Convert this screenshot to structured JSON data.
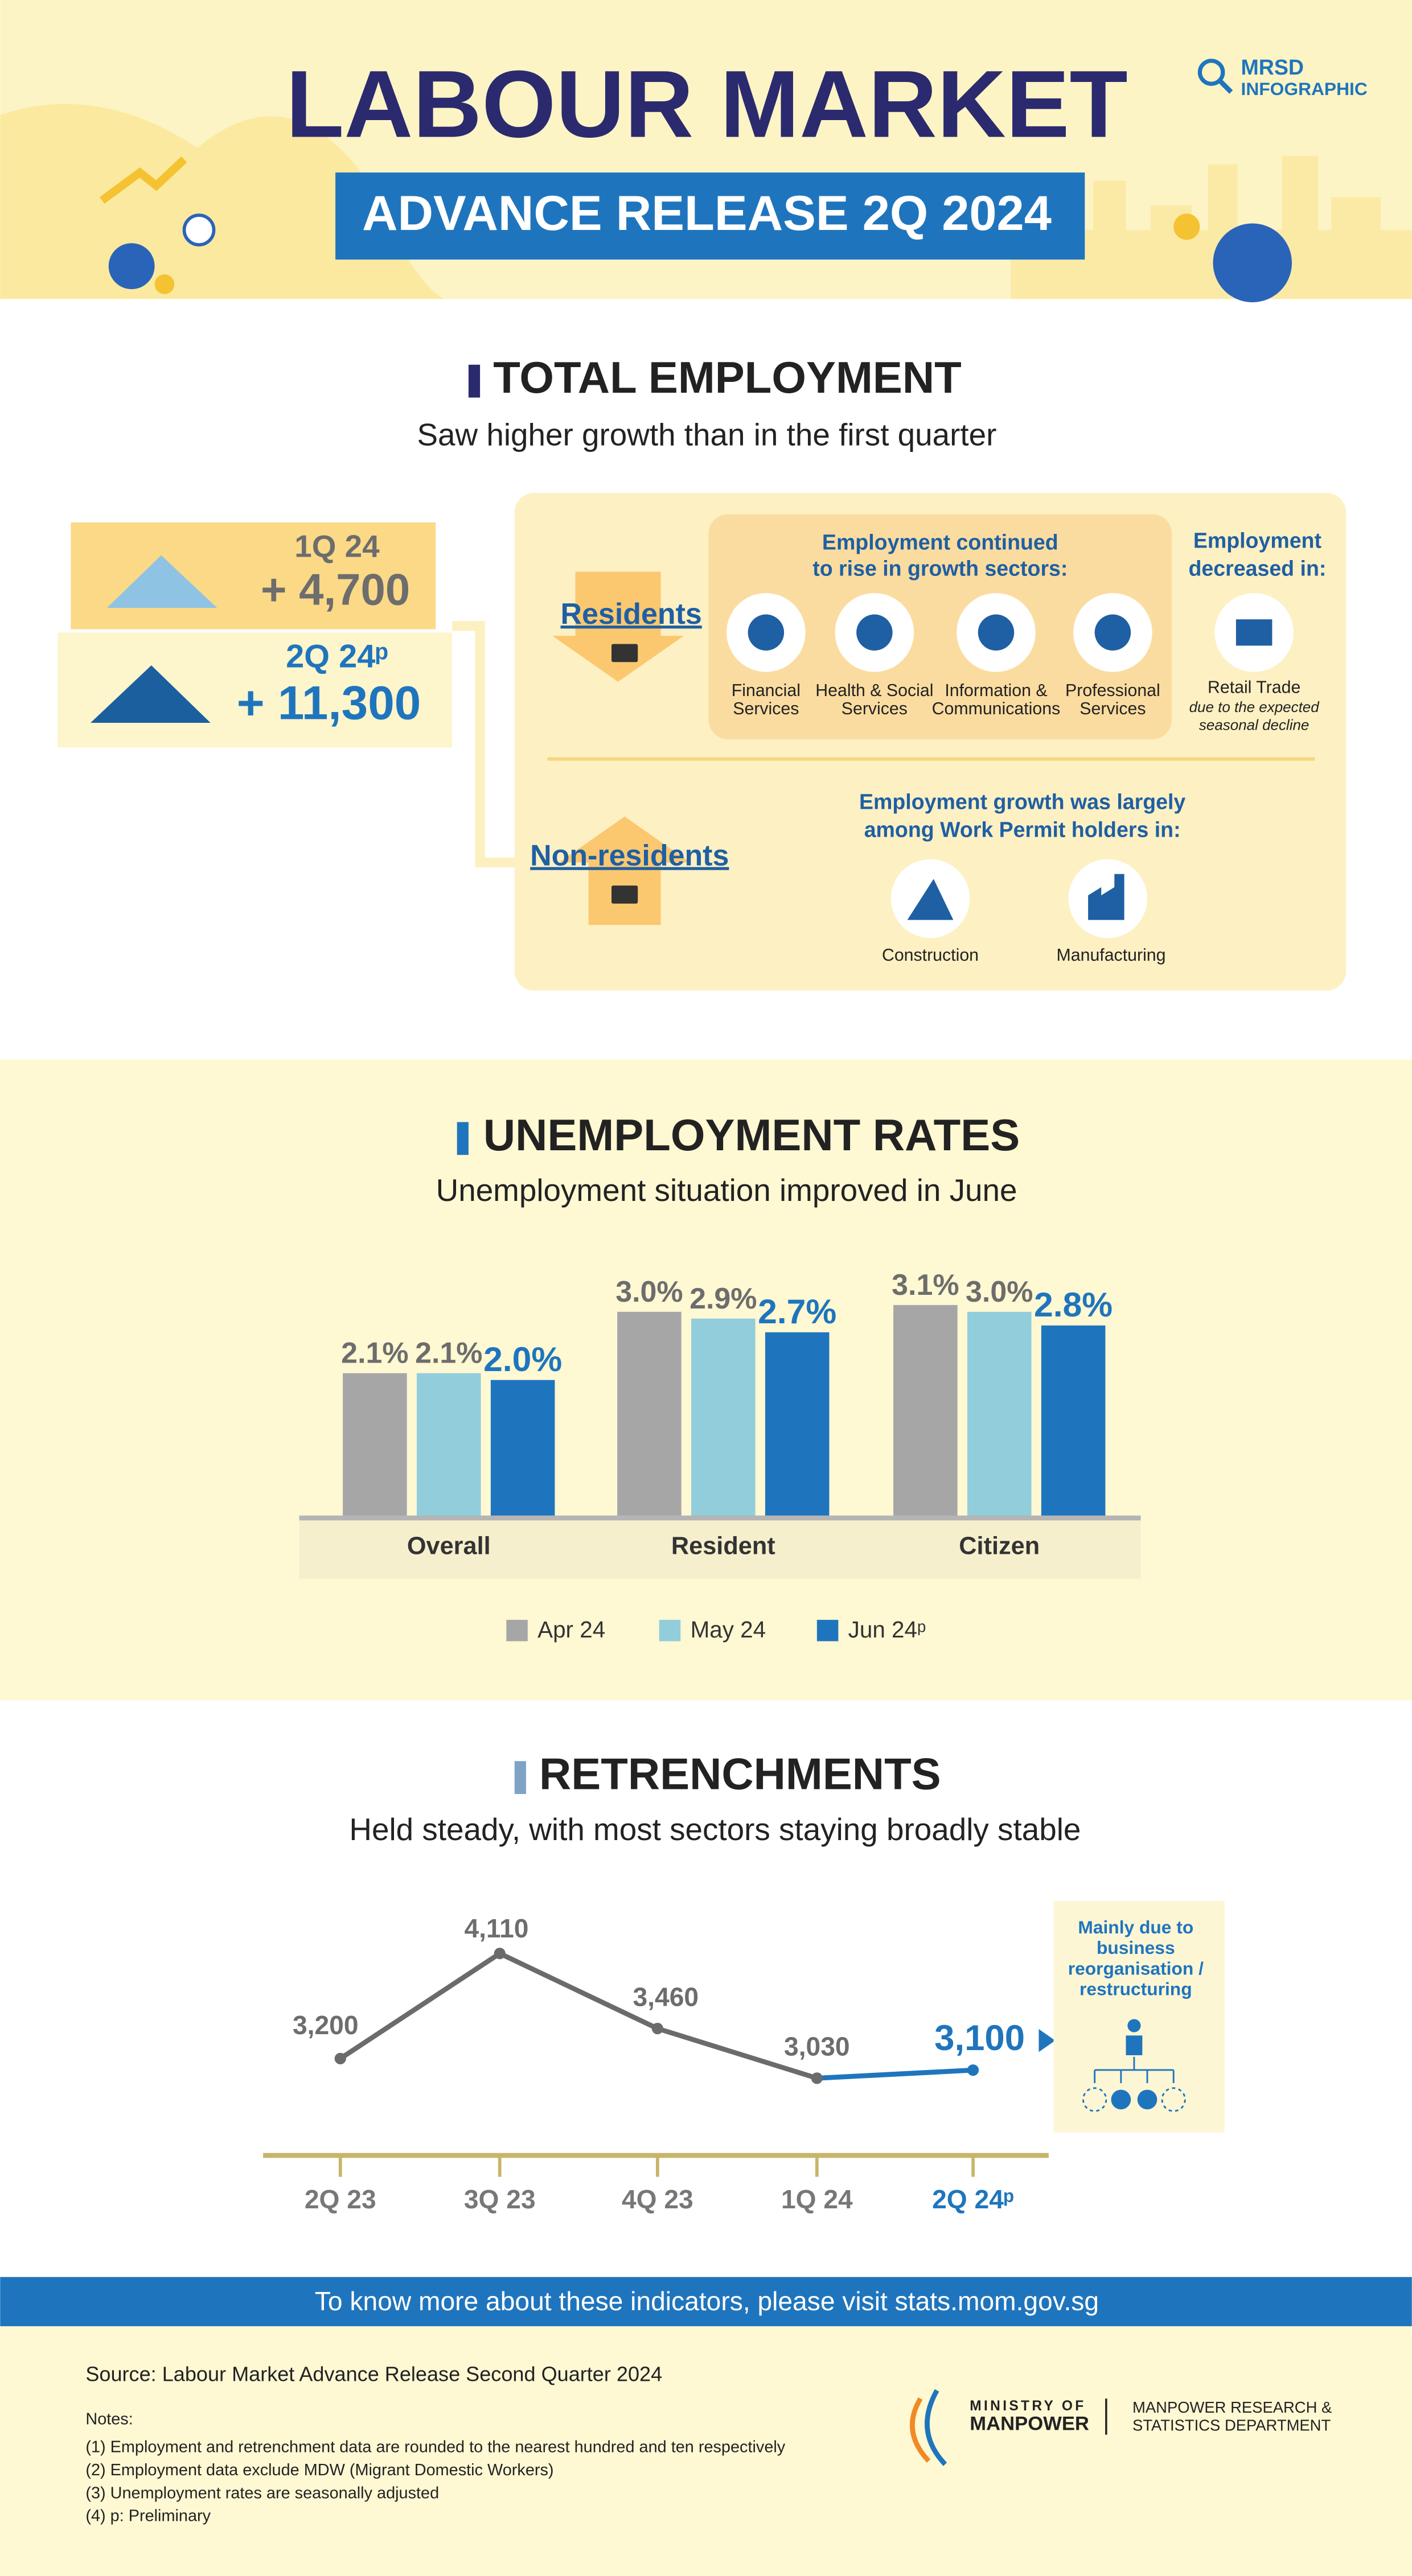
{
  "header": {
    "title": "LABOUR MARKET",
    "subtitle": "ADVANCE RELEASE 2Q 2024",
    "badge": [
      "MRSD",
      "INFOGRAPHIC"
    ]
  },
  "employment": {
    "heading": "TOTAL EMPLOYMENT",
    "subheading": "Saw higher growth than in the first quarter",
    "quarters": [
      {
        "label": "1Q 24",
        "change": "+ 4,700"
      },
      {
        "label": "2Q 24ᵖ",
        "change": "+ 11,300"
      }
    ],
    "residents": {
      "label": "Residents",
      "growth_heading": [
        "Employment continued",
        "to rise in growth sectors:"
      ],
      "growth_sectors": [
        [
          "Financial",
          "Services"
        ],
        [
          "Health & Social",
          "Services"
        ],
        [
          "Information &",
          "Communications"
        ],
        [
          "Professional",
          "Services"
        ]
      ],
      "decline_heading": [
        "Employment",
        "decreased in:"
      ],
      "decline_sector": "Retail Trade",
      "decline_note": [
        "due to the expected",
        "seasonal decline"
      ]
    },
    "non_residents": {
      "label": "Non-residents",
      "heading": [
        "Employment growth was largely",
        "among Work Permit holders in:"
      ],
      "sectors": [
        "Construction",
        "Manufacturing"
      ]
    }
  },
  "chart_data": [
    {
      "type": "bar",
      "title": "UNEMPLOYMENT RATES",
      "subtitle": "Unemployment situation improved in June",
      "categories": [
        "Overall",
        "Resident",
        "Citizen"
      ],
      "series": [
        {
          "name": "Apr 24",
          "color": "#a6a6a6",
          "values": [
            2.1,
            3.0,
            3.1
          ],
          "value_labels": [
            "2.1%",
            "3.0%",
            "3.1%"
          ]
        },
        {
          "name": "May 24",
          "color": "#92cddc",
          "values": [
            2.1,
            2.9,
            3.0
          ],
          "value_labels": [
            "2.1%",
            "2.9%",
            "3.0%"
          ]
        },
        {
          "name": "Jun 24ᵖ",
          "color": "#1f75bd",
          "values": [
            2.0,
            2.7,
            2.8
          ],
          "value_labels": [
            "2.0%",
            "2.7%",
            "2.8%"
          ]
        }
      ]
    },
    {
      "type": "line",
      "title": "RETRENCHMENTS",
      "subtitle": "Held steady, with most sectors staying broadly stable",
      "categories": [
        "2Q 23",
        "3Q 23",
        "4Q 23",
        "1Q 24",
        "2Q 24ᵖ"
      ],
      "values": [
        3200,
        4110,
        3460,
        3030,
        3100
      ],
      "value_labels": [
        "3,200",
        "4,110",
        "3,460",
        "3,030",
        "3,100"
      ],
      "color": "#6b6b6b",
      "highlight_color": "#1f75bd",
      "annotation": [
        "Mainly due to",
        "business",
        "reorganisation /",
        "restructuring"
      ]
    }
  ],
  "footer": {
    "banner": "To know more about these indicators, please visit stats.mom.gov.sg",
    "source": "Source: Labour Market Advance Release Second Quarter 2024",
    "notes_title": "Notes:",
    "notes": [
      "(1) Employment and retrenchment data are rounded to the nearest hundred and ten respectively",
      "(2) Employment data exclude MDW (Migrant Domestic Workers)",
      "(3) Unemployment rates are seasonally adjusted",
      "(4) p: Preliminary"
    ],
    "ministry": [
      "MINISTRY OF",
      "MANPOWER"
    ],
    "department": [
      "MANPOWER RESEARCH &",
      "STATISTICS DEPARTMENT"
    ]
  }
}
